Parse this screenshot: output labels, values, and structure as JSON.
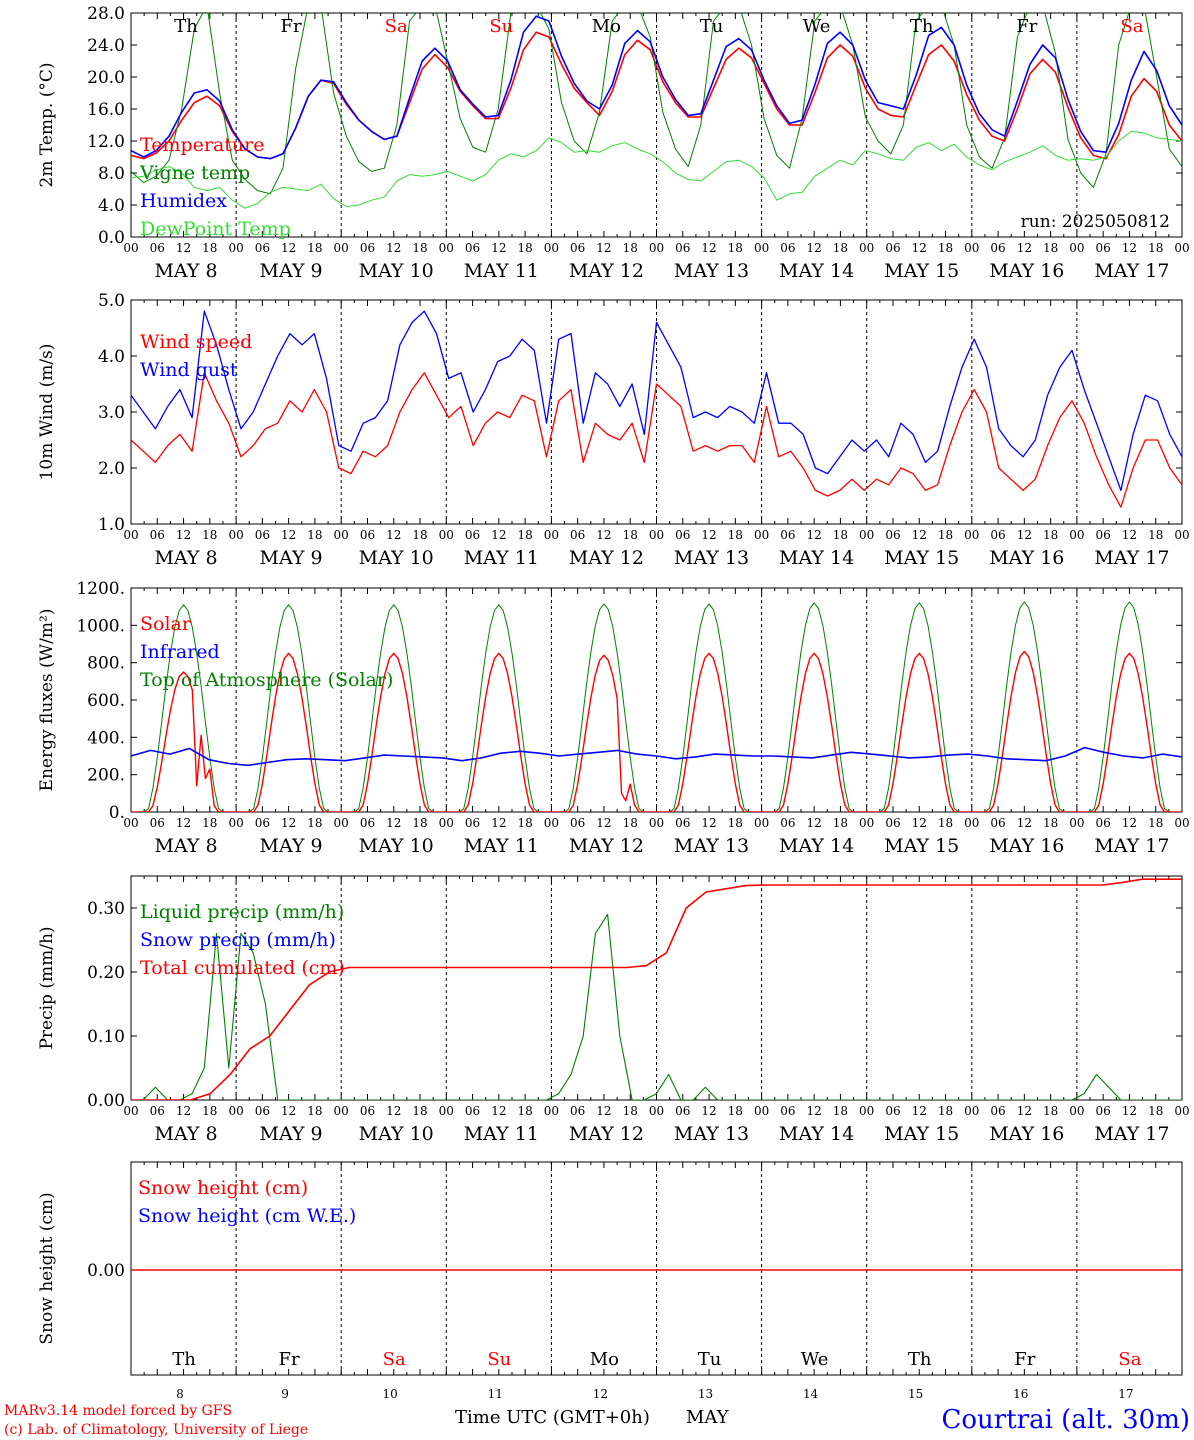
{
  "colors": {
    "red": "#ff0000",
    "green": "#008000",
    "blue": "#0000ff",
    "lightgreen": "#33dd33",
    "black": "#000000"
  },
  "time_axis": {
    "hour_labels": [
      "00",
      "06",
      "12",
      "18"
    ],
    "date_labels": [
      "MAY  8",
      "MAY  9",
      "MAY 10",
      "MAY 11",
      "MAY 12",
      "MAY 13",
      "MAY 14",
      "MAY 15",
      "MAY 16",
      "MAY 17"
    ],
    "weekdays": [
      {
        "label": "Th",
        "color": "black"
      },
      {
        "label": "Fr",
        "color": "black"
      },
      {
        "label": "Sa",
        "color": "red"
      },
      {
        "label": "Su",
        "color": "red"
      },
      {
        "label": "Mo",
        "color": "black"
      },
      {
        "label": "Tu",
        "color": "black"
      },
      {
        "label": "We",
        "color": "black"
      },
      {
        "label": "Th",
        "color": "black"
      },
      {
        "label": "Fr",
        "color": "black"
      },
      {
        "label": "Sa",
        "color": "red"
      }
    ],
    "day_numbers": [
      "8",
      "9",
      "10",
      "11",
      "12",
      "13",
      "14",
      "15",
      "16",
      "17"
    ],
    "xlabel": "Time UTC (GMT+0h)",
    "month": "MAY"
  },
  "footer": {
    "model_line": "MARv3.14 model forced by GFS",
    "copyright_line": "(c) Lab. of Climatology, University of Liege",
    "station": "Courtrai (alt. 30m)"
  },
  "chart_data": [
    {
      "type": "line",
      "id": "temperature",
      "ylabel": "2m Temp. (°C)",
      "ylim": [
        0,
        28
      ],
      "yticks": [
        "0.0",
        "4.0",
        "8.0",
        "12.0",
        "16.0",
        "20.0",
        "24.0",
        "28.0"
      ],
      "run_label": "run: 2025050812",
      "grid": false,
      "legend": "top-left",
      "series": [
        {
          "name": "Temperature",
          "color": "red",
          "values": [
            10.2,
            9.8,
            10.5,
            12.0,
            14.6,
            16.8,
            17.6,
            16.4,
            13.2,
            11.0,
            10.0,
            9.8,
            10.4,
            13.6,
            17.6,
            19.6,
            19.2,
            16.6,
            14.6,
            13.2,
            12.2,
            12.6,
            16.8,
            21.0,
            22.8,
            21.2,
            18.2,
            16.4,
            14.8,
            14.8,
            18.6,
            23.4,
            25.6,
            25.0,
            21.6,
            18.6,
            16.8,
            15.2,
            18.2,
            22.8,
            24.6,
            23.4,
            19.4,
            16.8,
            15.0,
            15.0,
            18.6,
            22.2,
            23.6,
            22.4,
            19.2,
            16.0,
            14.0,
            14.0,
            18.0,
            22.4,
            24.0,
            22.6,
            18.6,
            16.0,
            15.2,
            15.0,
            19.0,
            22.8,
            24.0,
            22.0,
            17.8,
            14.6,
            12.6,
            12.0,
            16.0,
            20.4,
            22.2,
            20.6,
            16.2,
            12.4,
            10.2,
            9.8,
            12.8,
            17.6,
            19.8,
            18.2,
            14.0,
            12.0
          ]
        },
        {
          "name": "Vigne temp",
          "color": "green",
          "values": [
            8.2,
            6.8,
            7.6,
            9.6,
            16.0,
            26.0,
            29.0,
            18.0,
            9.6,
            7.2,
            5.8,
            5.4,
            8.6,
            21.0,
            29.0,
            29.0,
            18.0,
            12.6,
            9.4,
            8.2,
            8.6,
            14.0,
            27.0,
            29.0,
            29.0,
            22.0,
            14.8,
            11.2,
            10.6,
            16.0,
            28.0,
            29.0,
            29.0,
            26.0,
            16.8,
            12.0,
            10.4,
            15.6,
            27.0,
            29.0,
            29.0,
            25.0,
            15.6,
            11.0,
            8.8,
            14.0,
            27.0,
            29.0,
            29.0,
            24.0,
            14.8,
            10.2,
            8.6,
            14.8,
            27.0,
            29.0,
            29.0,
            24.0,
            15.0,
            12.0,
            10.4,
            14.0,
            27.0,
            29.0,
            29.0,
            24.0,
            14.0,
            10.0,
            8.6,
            12.4,
            25.0,
            29.0,
            29.0,
            23.0,
            12.2,
            8.0,
            6.2,
            10.4,
            24.0,
            29.0,
            29.0,
            20.0,
            11.0,
            8.8
          ]
        },
        {
          "name": "Humidex",
          "color": "blue",
          "values": [
            10.8,
            10.0,
            10.8,
            12.6,
            15.6,
            18.0,
            18.4,
            17.0,
            13.4,
            11.0,
            10.0,
            9.8,
            10.4,
            13.6,
            17.6,
            19.6,
            19.4,
            16.8,
            14.6,
            13.2,
            12.2,
            12.6,
            17.4,
            22.0,
            23.6,
            22.0,
            18.4,
            16.6,
            15.0,
            15.2,
            19.6,
            25.6,
            27.6,
            27.0,
            22.6,
            19.2,
            17.0,
            16.0,
            19.0,
            24.2,
            25.8,
            24.4,
            20.0,
            17.2,
            15.2,
            15.4,
            19.6,
            23.8,
            24.8,
            23.4,
            19.6,
            16.4,
            14.2,
            14.6,
            19.0,
            24.2,
            25.6,
            24.0,
            19.6,
            16.8,
            16.4,
            16.0,
            20.2,
            25.2,
            26.2,
            24.0,
            19.0,
            15.4,
            13.4,
            12.6,
            17.0,
            21.6,
            24.0,
            22.4,
            17.2,
            13.2,
            10.8,
            10.6,
            14.2,
            19.6,
            23.2,
            20.8,
            16.4,
            14.0
          ]
        },
        {
          "name": "DewPoint Temp",
          "color": "lightgreen",
          "values": [
            7.4,
            7.6,
            8.4,
            8.8,
            8.0,
            6.2,
            5.8,
            6.2,
            4.6,
            3.6,
            4.2,
            5.6,
            6.2,
            6.0,
            5.8,
            6.6,
            4.8,
            3.8,
            4.0,
            4.6,
            5.0,
            7.0,
            7.8,
            7.6,
            7.8,
            8.2,
            7.6,
            7.0,
            7.8,
            9.6,
            10.4,
            10.0,
            10.8,
            12.4,
            11.8,
            10.6,
            10.8,
            10.6,
            11.4,
            11.8,
            11.0,
            10.4,
            9.4,
            8.0,
            7.2,
            7.0,
            8.2,
            9.4,
            9.6,
            8.8,
            7.4,
            4.6,
            5.4,
            5.6,
            7.6,
            8.6,
            9.6,
            9.0,
            10.8,
            10.4,
            9.8,
            9.6,
            11.2,
            11.8,
            10.8,
            11.6,
            10.0,
            9.0,
            8.4,
            9.4,
            10.0,
            10.6,
            11.4,
            10.2,
            9.6,
            9.8,
            9.6,
            10.0,
            12.0,
            13.2,
            13.0,
            12.4,
            12.2,
            12.0
          ]
        }
      ]
    },
    {
      "type": "line",
      "id": "wind",
      "ylabel": "10m Wind (m/s)",
      "ylim": [
        1,
        5
      ],
      "yticks": [
        "1.0",
        "2.0",
        "3.0",
        "4.0",
        "5.0"
      ],
      "grid": false,
      "legend": "top-left",
      "series": [
        {
          "name": "Wind speed",
          "color": "red",
          "values": [
            2.5,
            2.3,
            2.1,
            2.4,
            2.6,
            2.3,
            3.7,
            3.2,
            2.8,
            2.2,
            2.4,
            2.7,
            2.8,
            3.2,
            3.0,
            3.4,
            3.0,
            2.0,
            1.9,
            2.3,
            2.2,
            2.4,
            3.0,
            3.4,
            3.7,
            3.3,
            2.9,
            3.1,
            2.4,
            2.8,
            3.0,
            2.9,
            3.3,
            3.2,
            2.2,
            3.2,
            3.4,
            2.1,
            2.8,
            2.6,
            2.5,
            2.8,
            2.1,
            3.5,
            3.3,
            3.1,
            2.3,
            2.4,
            2.3,
            2.4,
            2.4,
            2.1,
            3.1,
            2.2,
            2.3,
            2.0,
            1.6,
            1.5,
            1.6,
            1.8,
            1.6,
            1.8,
            1.7,
            2.0,
            1.9,
            1.6,
            1.7,
            2.4,
            3.0,
            3.4,
            3.0,
            2.0,
            1.8,
            1.6,
            1.8,
            2.4,
            2.9,
            3.2,
            2.8,
            2.2,
            1.7,
            1.3,
            2.0,
            2.5,
            2.5,
            2.0,
            1.7
          ]
        },
        {
          "name": "Wind gust",
          "color": "blue",
          "values": [
            3.3,
            3.0,
            2.7,
            3.1,
            3.4,
            2.9,
            4.8,
            4.2,
            3.4,
            2.7,
            3.0,
            3.5,
            4.0,
            4.4,
            4.2,
            4.4,
            3.6,
            2.4,
            2.3,
            2.8,
            2.9,
            3.2,
            4.2,
            4.6,
            4.8,
            4.4,
            3.6,
            3.7,
            3.0,
            3.4,
            3.9,
            4.0,
            4.3,
            4.1,
            2.8,
            4.3,
            4.4,
            2.8,
            3.7,
            3.5,
            3.1,
            3.5,
            2.6,
            4.6,
            4.2,
            3.8,
            2.9,
            3.0,
            2.9,
            3.1,
            3.0,
            2.8,
            3.7,
            2.8,
            2.8,
            2.6,
            2.0,
            1.9,
            2.2,
            2.5,
            2.3,
            2.5,
            2.2,
            2.8,
            2.6,
            2.1,
            2.3,
            3.1,
            3.8,
            4.3,
            3.8,
            2.7,
            2.4,
            2.2,
            2.5,
            3.3,
            3.8,
            4.1,
            3.4,
            2.8,
            2.2,
            1.6,
            2.6,
            3.3,
            3.2,
            2.6,
            2.2
          ]
        }
      ]
    },
    {
      "type": "line",
      "id": "radiation",
      "ylabel": "Energy fluxes (W/m²)",
      "ylim": [
        0,
        1200
      ],
      "yticks": [
        "0.",
        "200.",
        "400.",
        "600.",
        "800.",
        "1000.",
        "1200."
      ],
      "grid": false,
      "legend": "top-left",
      "series": [
        {
          "name": "Solar",
          "color": "red",
          "peaks": [
            750,
            850,
            850,
            850,
            840,
            850,
            850,
            850,
            860,
            850
          ],
          "note": "diurnal cycle, sunrise ~04h, sunset ~20h"
        },
        {
          "name": "Infrared",
          "color": "blue",
          "values": [
            300,
            330,
            310,
            340,
            280,
            260,
            250,
            265,
            280,
            285,
            280,
            275,
            290,
            305,
            300,
            295,
            290,
            275,
            290,
            315,
            325,
            315,
            300,
            310,
            320,
            330,
            310,
            300,
            285,
            295,
            310,
            305,
            300,
            300,
            295,
            290,
            305,
            320,
            310,
            300,
            290,
            295,
            305,
            310,
            300,
            285,
            280,
            275,
            300,
            345,
            320,
            300,
            290,
            310,
            295
          ]
        },
        {
          "name": "Top of Atmosphere (Solar)",
          "color": "green",
          "peaks": [
            1110,
            1110,
            1110,
            1110,
            1115,
            1115,
            1120,
            1120,
            1125,
            1125
          ]
        }
      ]
    },
    {
      "type": "line",
      "id": "precip",
      "ylabel": "Precip (mm/h)",
      "ylim": [
        0,
        0.35
      ],
      "yticks": [
        "0.00",
        "0.10",
        "0.20",
        "0.30"
      ],
      "grid": false,
      "legend": "top-left",
      "series": [
        {
          "name": "Liquid precip (mm/h)",
          "color": "green",
          "values": [
            0,
            0,
            0.02,
            0,
            0,
            0.01,
            0.05,
            0.26,
            0.05,
            0.26,
            0.23,
            0.15,
            0,
            0,
            0,
            0,
            0,
            0,
            0,
            0,
            0,
            0,
            0,
            0,
            0,
            0,
            0,
            0,
            0,
            0,
            0,
            0,
            0,
            0,
            0,
            0.01,
            0.04,
            0.1,
            0.26,
            0.29,
            0.1,
            0,
            0,
            0.01,
            0.04,
            0,
            0,
            0.02,
            0,
            0,
            0,
            0,
            0,
            0,
            0,
            0,
            0,
            0,
            0,
            0,
            0,
            0,
            0,
            0,
            0,
            0,
            0,
            0,
            0,
            0,
            0,
            0,
            0,
            0,
            0,
            0,
            0,
            0,
            0.01,
            0.04,
            0.02,
            0,
            0,
            0,
            0,
            0,
            0
          ]
        },
        {
          "name": "Snow precip (mm/h)",
          "color": "blue",
          "values": []
        },
        {
          "name": "Total cumulated (cm)",
          "color": "red",
          "values": [
            0,
            0,
            0,
            0,
            0.01,
            0.04,
            0.08,
            0.1,
            0.14,
            0.18,
            0.2,
            0.207,
            0.207,
            0.207,
            0.207,
            0.207,
            0.207,
            0.207,
            0.207,
            0.207,
            0.207,
            0.207,
            0.207,
            0.207,
            0.207,
            0.207,
            0.21,
            0.23,
            0.3,
            0.325,
            0.33,
            0.335,
            0.336,
            0.336,
            0.336,
            0.336,
            0.336,
            0.336,
            0.336,
            0.336,
            0.336,
            0.336,
            0.336,
            0.336,
            0.336,
            0.336,
            0.336,
            0.336,
            0.336,
            0.336,
            0.34,
            0.345,
            0.345,
            0.345
          ]
        }
      ]
    },
    {
      "type": "line",
      "id": "snow",
      "ylabel": "Snow height (cm)",
      "yticks": [
        "0.00"
      ],
      "grid": false,
      "legend": "top-left",
      "series": [
        {
          "name": "Snow height (cm)",
          "color": "red",
          "values": [
            0,
            0
          ]
        },
        {
          "name": "Snow height (cm W.E.)",
          "color": "blue",
          "values": []
        }
      ]
    }
  ]
}
